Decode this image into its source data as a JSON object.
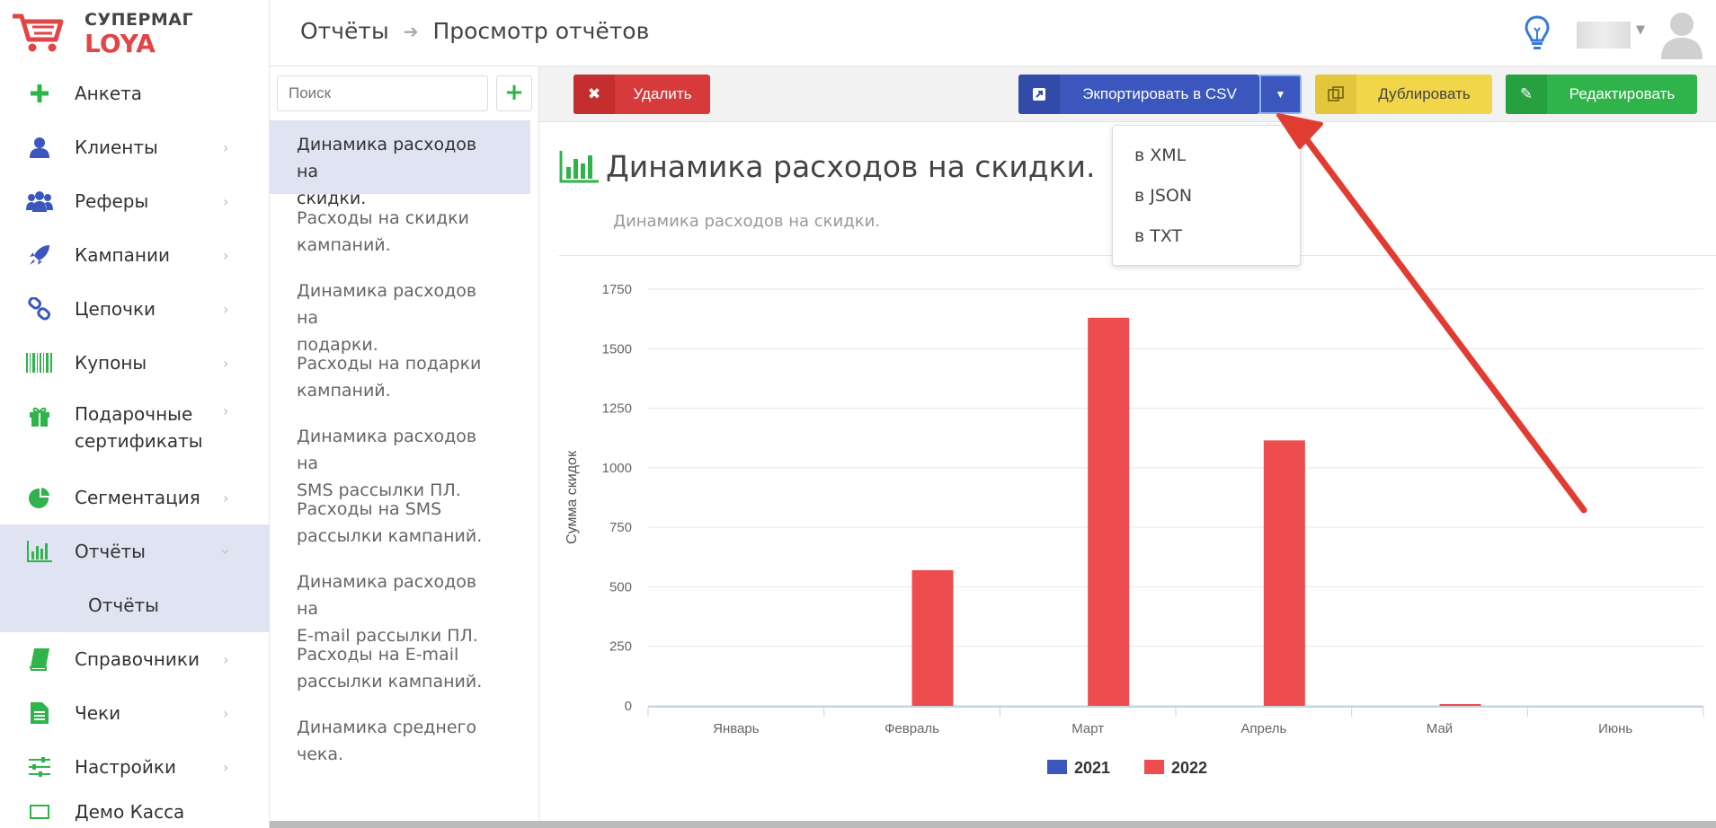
{
  "logo": {
    "line1": "СУПЕРМАГ",
    "line2": "LOYA"
  },
  "breadcrumb": {
    "section": "Отчёты",
    "page": "Просмотр отчётов"
  },
  "sidebar": {
    "items": [
      {
        "label": "Анкета",
        "icon": "plus-icon"
      },
      {
        "label": "Клиенты",
        "icon": "user-icon"
      },
      {
        "label": "Реферы",
        "icon": "users-icon"
      },
      {
        "label": "Кампании",
        "icon": "rocket-icon"
      },
      {
        "label": "Цепочки",
        "icon": "chain-icon"
      },
      {
        "label": "Купоны",
        "icon": "barcode-icon"
      },
      {
        "label": "Подарочные",
        "label2": "сертификаты",
        "icon": "gift-icon"
      },
      {
        "label": "Сегментация",
        "icon": "pie-chart-icon"
      },
      {
        "label": "Отчёты",
        "icon": "bar-chart-icon"
      },
      {
        "label": "Справочники",
        "icon": "book-icon"
      },
      {
        "label": "Чеки",
        "icon": "receipt-icon"
      },
      {
        "label": "Настройки",
        "icon": "sliders-icon"
      },
      {
        "label": "Демо Касса",
        "icon": "monitor-icon"
      }
    ],
    "submenu": {
      "label": "Отчёты"
    }
  },
  "reports_list": {
    "search_placeholder": "Поиск",
    "items": [
      {
        "l1": "Динамика расходов на",
        "l2": "скидки."
      },
      {
        "l1": "Расходы на скидки",
        "l2": "кампаний."
      },
      {
        "l1": "Динамика расходов на",
        "l2": "подарки."
      },
      {
        "l1": "Расходы на подарки",
        "l2": "кампаний."
      },
      {
        "l1": "Динамика расходов на",
        "l2": "SMS рассылки ПЛ."
      },
      {
        "l1": "Расходы на SMS",
        "l2": "рассылки кампаний."
      },
      {
        "l1": "Динамика расходов на",
        "l2": "E-mail рассылки ПЛ."
      },
      {
        "l1": "Расходы на E-mail",
        "l2": "рассылки кампаний."
      },
      {
        "l1": "Динамика среднего",
        "l2": "чека."
      }
    ]
  },
  "toolbar": {
    "delete_label": "Удалить",
    "export_label": "Экпортировать в CSV",
    "duplicate_label": "Дублировать",
    "edit_label": "Редактировать"
  },
  "export_menu": {
    "items": [
      "в XML",
      "в JSON",
      "в TXT"
    ]
  },
  "report": {
    "title": "Динамика расходов на скидки.",
    "subtitle": "Динамика расходов на скидки."
  },
  "colors": {
    "series2021": "#3b57bd",
    "series2022": "#ee4d4f",
    "accent": "#2fb34a",
    "annotation": "#e03c31"
  },
  "chart_data": {
    "type": "bar",
    "categories": [
      "Январь",
      "Февраль",
      "Март",
      "Апрель",
      "Май",
      "Июнь"
    ],
    "series": [
      {
        "name": "2021",
        "values": [
          0,
          0,
          0,
          0,
          0,
          0
        ]
      },
      {
        "name": "2022",
        "values": [
          0,
          570,
          1630,
          1115,
          5,
          0
        ]
      }
    ],
    "ylabel": "Сумма скидок",
    "ylim": [
      0,
      1750
    ],
    "yticks": [
      "0",
      "250",
      "500",
      "750",
      "1000",
      "1250",
      "1500",
      "1750"
    ],
    "legend": "bottom",
    "grid": true
  }
}
